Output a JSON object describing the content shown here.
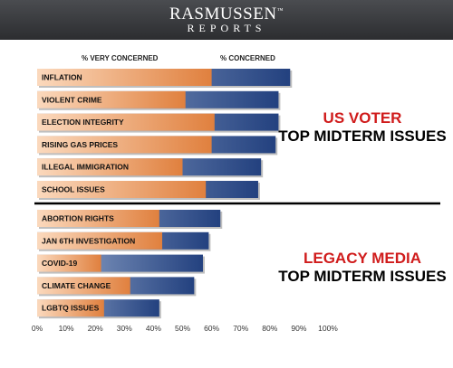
{
  "header": {
    "brand_line1": "RASMUSSEN",
    "brand_line1_mark": "™",
    "brand_line2": "REPORTS"
  },
  "legend": {
    "very_concerned": "% VERY CONCERNED",
    "concerned": "% CONCERNED"
  },
  "headings": {
    "voter_line1": "US VOTER",
    "voter_line2": "TOP MIDTERM ISSUES",
    "media_line1": "LEGACY MEDIA",
    "media_line2": "TOP MIDTERM ISSUES"
  },
  "colors": {
    "very_concerned": "#e8955a",
    "concerned": "#2a4a8a",
    "heading_red": "#d01c1c"
  },
  "chart_data": {
    "type": "bar",
    "orientation": "horizontal",
    "xlim": [
      0,
      100
    ],
    "x_ticks": [
      "0%",
      "10%",
      "20%",
      "30%",
      "40%",
      "50%",
      "60%",
      "70%",
      "80%",
      "90%",
      "100%"
    ],
    "groups": [
      {
        "name": "US VOTER TOP MIDTERM ISSUES",
        "categories": [
          "INFLATION",
          "VIOLENT CRIME",
          "ELECTION INTEGRITY",
          "RISING GAS PRICES",
          "ILLEGAL IMMIGRATION",
          "SCHOOL ISSUES"
        ],
        "very_concerned": [
          60,
          51,
          61,
          60,
          50,
          58
        ],
        "concerned": [
          87,
          83,
          83,
          82,
          77,
          76
        ]
      },
      {
        "name": "LEGACY MEDIA TOP MIDTERM ISSUES",
        "categories": [
          "ABORTION RIGHTS",
          "JAN 6TH INVESTIGATION",
          "COVID-19",
          "CLIMATE CHANGE",
          "LGBTQ ISSUES"
        ],
        "very_concerned": [
          42,
          43,
          22,
          32,
          23
        ],
        "concerned": [
          63,
          59,
          57,
          54,
          42
        ]
      }
    ],
    "series": [
      {
        "name": "% VERY CONCERNED"
      },
      {
        "name": "% CONCERNED"
      }
    ]
  }
}
